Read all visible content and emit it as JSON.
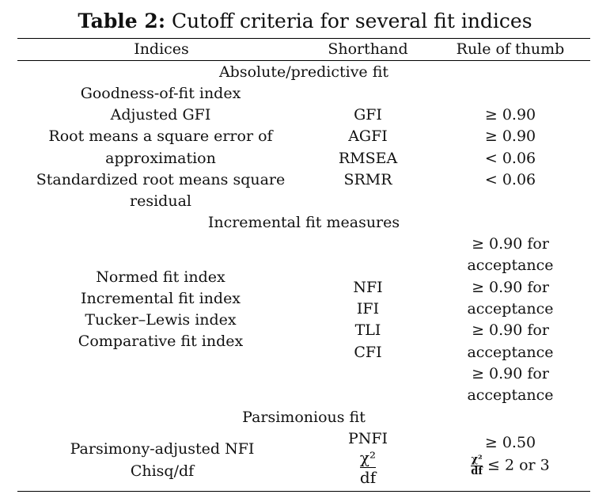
{
  "title": {
    "label": "Table 2:",
    "text": " Cutoff criteria for several fit indices"
  },
  "headers": {
    "indices": "Indices",
    "shorthand": "Shorthand",
    "rule": "Rule of thumb"
  },
  "sections": {
    "absolute": "Absolute/predictive fit",
    "incremental": "Incremental fit measures",
    "parsimonious": "Parsimonious fit"
  },
  "absolute": {
    "indices": [
      "Goodness-of-fit index",
      "Adjusted GFI",
      "Root means a square error of",
      "approximation",
      "Standardized root means square",
      "residual"
    ],
    "shorthand": [
      "GFI",
      "AGFI",
      "RMSEA",
      "SRMR"
    ],
    "rules": [
      "≥ 0.90",
      "≥ 0.90",
      "< 0.06",
      "< 0.06"
    ]
  },
  "incremental": {
    "indices": [
      "Normed fit index",
      "Incremental fit index",
      "Tucker–Lewis index",
      "Comparative fit index"
    ],
    "shorthand": [
      "NFI",
      "IFI",
      "TLI",
      "CFI"
    ],
    "rules": [
      "≥ 0.90 for",
      "acceptance",
      "≥ 0.90 for",
      "acceptance",
      "≥ 0.90 for",
      "acceptance",
      "≥ 0.90 for",
      "acceptance"
    ]
  },
  "parsimonious": {
    "indices": [
      "Parsimony-adjusted NFI",
      "Chisq/df"
    ],
    "shorthand": [
      "PNFI"
    ],
    "chisq_fraction": {
      "numerator": "χ²",
      "denominator": "df"
    },
    "rules": [
      "≥ 0.50"
    ],
    "chisq_rule": {
      "numerator": "χ²",
      "denominator": "df",
      "suffix": "≤ 2 or 3"
    }
  }
}
